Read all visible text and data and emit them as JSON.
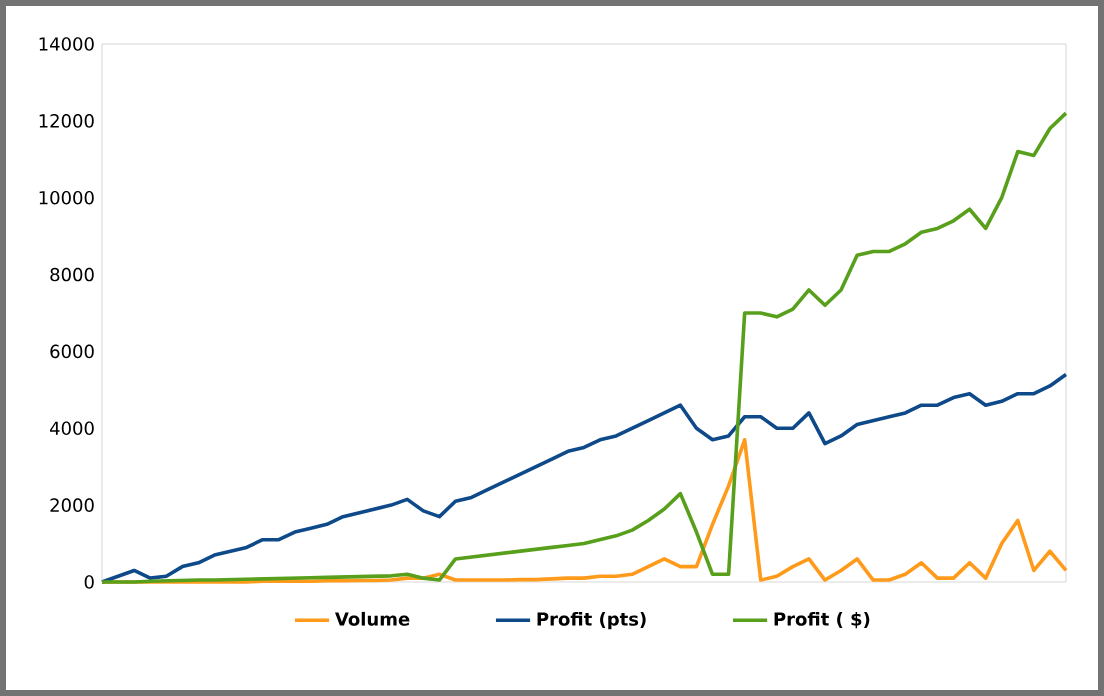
{
  "chart_data": {
    "type": "line",
    "categories": [
      null,
      null,
      null,
      null,
      null,
      null,
      null,
      null,
      null,
      null,
      null,
      null,
      null,
      null,
      null,
      null,
      null,
      null,
      null,
      null,
      null,
      null,
      null,
      null,
      null,
      null,
      null,
      null,
      null,
      null,
      null,
      null,
      null,
      null,
      null,
      null,
      null,
      null,
      null,
      null,
      null,
      null,
      null,
      null,
      null,
      null,
      null,
      null,
      null,
      null,
      null,
      null,
      null,
      null,
      null,
      null,
      null,
      null,
      null,
      null,
      null
    ],
    "series": [
      {
        "name": "Volume",
        "color": "#ff9a1a",
        "values": [
          0,
          0,
          0,
          0,
          0,
          0,
          0,
          0,
          0,
          0,
          20,
          20,
          20,
          20,
          30,
          30,
          40,
          40,
          50,
          100,
          100,
          200,
          50,
          50,
          50,
          50,
          60,
          60,
          80,
          100,
          100,
          150,
          150,
          200,
          400,
          600,
          400,
          400,
          1500,
          2500,
          3700,
          50,
          150,
          400,
          600,
          50,
          300,
          600,
          50,
          50,
          200,
          500,
          100,
          100,
          500,
          100,
          1000,
          1600,
          300,
          800,
          300
        ]
      },
      {
        "name": "Profit (pts)",
        "color": "#0e4a8a",
        "values": [
          0,
          150,
          300,
          100,
          150,
          400,
          500,
          700,
          800,
          900,
          1100,
          1100,
          1300,
          1400,
          1500,
          1700,
          1800,
          1900,
          2000,
          2150,
          1850,
          1700,
          2100,
          2200,
          2400,
          2600,
          2800,
          3000,
          3200,
          3400,
          3500,
          3700,
          3800,
          4000,
          4200,
          4400,
          4600,
          4000,
          3700,
          3800,
          4300,
          4300,
          4000,
          4000,
          4400,
          3600,
          3800,
          4100,
          4200,
          4300,
          4400,
          4600,
          4600,
          4800,
          4900,
          4600,
          4700,
          4900,
          4900,
          5100,
          5400
        ]
      },
      {
        "name": "Profit ( $)",
        "color": "#58a01c",
        "values": [
          0,
          0,
          0,
          20,
          30,
          40,
          50,
          50,
          60,
          70,
          80,
          90,
          100,
          110,
          120,
          130,
          140,
          150,
          160,
          200,
          100,
          50,
          600,
          650,
          700,
          750,
          800,
          850,
          900,
          950,
          1000,
          1100,
          1200,
          1350,
          1600,
          1900,
          2300,
          1300,
          200,
          200,
          7000,
          7000,
          6900,
          7100,
          7600,
          7200,
          7600,
          8500,
          8600,
          8600,
          8800,
          9100,
          9200,
          9400,
          9700,
          9200,
          10000,
          11200,
          11100,
          11800,
          12200
        ]
      }
    ],
    "ylim": [
      0,
      14000
    ],
    "yticks": [
      0,
      2000,
      4000,
      6000,
      8000,
      10000,
      12000,
      14000
    ],
    "grid": false,
    "legend": "bottom",
    "marker": "none",
    "line_style": "solid"
  }
}
